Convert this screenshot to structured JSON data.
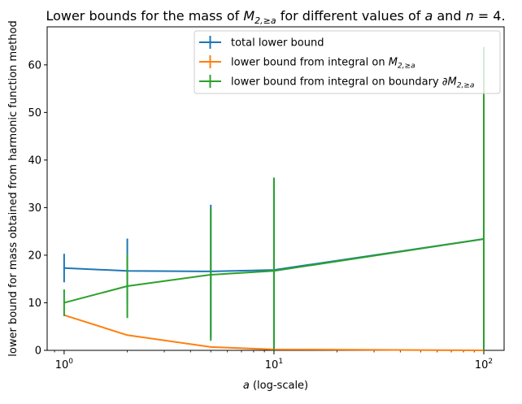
{
  "chart_data": {
    "type": "line",
    "title": "Lower bounds for the mass of M_{2,≥a} for different values of a and n = 4.",
    "title_parts": {
      "prefix": "Lower bounds for the mass of ",
      "M": "M",
      "M_sub": "2,≥a",
      "mid": " for different values of ",
      "a": "a",
      "and": " and ",
      "n": "n",
      "eq": " = 4."
    },
    "xlabel": "a (log-scale)",
    "xlabel_parts": {
      "italic": "a",
      "rest": " (log-scale)"
    },
    "ylabel": "lower bound for mass obtained from harmonic function method",
    "x_scale": "log",
    "xlim": [
      0.83,
      125
    ],
    "ylim": [
      0,
      68
    ],
    "x_ticks": [
      {
        "value": 1,
        "base": "10",
        "exp": "0"
      },
      {
        "value": 10,
        "base": "10",
        "exp": "1"
      },
      {
        "value": 100,
        "base": "10",
        "exp": "2"
      }
    ],
    "y_ticks": [
      0,
      10,
      20,
      30,
      40,
      50,
      60
    ],
    "legend_placement": "top-center",
    "grid": false,
    "series": [
      {
        "name": "total lower bound",
        "color": "#1f77b4",
        "x": [
          1,
          2,
          5,
          10,
          100
        ],
        "y": [
          17.3,
          16.7,
          16.6,
          16.9,
          23.4
        ],
        "yerr": [
          3.0,
          6.8,
          14.0,
          19.4,
          40.0
        ]
      },
      {
        "name": "lower bound from integral on M_{2,≥a}",
        "name_parts": {
          "text": "lower bound from integral on ",
          "sym": "M",
          "sub": "2,≥a"
        },
        "color": "#ff7f0e",
        "x": [
          1,
          2,
          5,
          10,
          100
        ],
        "y": [
          7.4,
          3.2,
          0.7,
          0.2,
          0.0
        ],
        "yerr": [
          0.0,
          0.0,
          0.0,
          0.0,
          0.0
        ]
      },
      {
        "name": "lower bound from integral on boundary ∂M_{2,≥a}",
        "name_parts": {
          "text": "lower bound from integral on boundary ∂",
          "sym": "M",
          "sub": "2,≥a"
        },
        "color": "#2ca02c",
        "x": [
          1,
          2,
          5,
          10,
          100
        ],
        "y": [
          10.0,
          13.5,
          15.9,
          16.7,
          23.4
        ],
        "yerr": [
          2.8,
          6.7,
          13.9,
          19.6,
          40.4
        ]
      }
    ]
  }
}
